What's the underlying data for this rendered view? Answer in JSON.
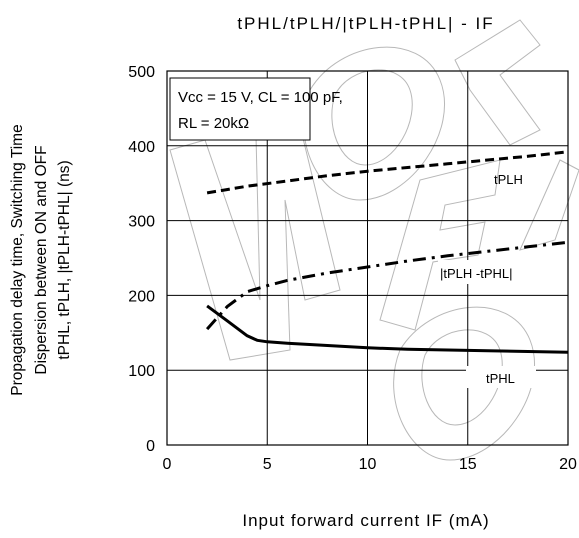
{
  "chart_data": {
    "type": "line",
    "title": "tPHL/tPLH/|tPLH-tPHL| - IF",
    "xlabel": "Input forward current IF (mA)",
    "ylabel": [
      "Propagation delay time, Switching Time",
      "Dispersion between ON and OFF",
      "tPHL, tPLH, |tPLH-tPHL| (ns)"
    ],
    "xlim": [
      0,
      20
    ],
    "ylim": [
      0,
      500
    ],
    "x_ticks": [
      0,
      5,
      10,
      15,
      20
    ],
    "y_ticks": [
      0,
      100,
      200,
      300,
      400,
      500
    ],
    "x_tick_labels": [
      "0",
      "5",
      "10",
      "15",
      "20"
    ],
    "y_tick_labels": [
      "0",
      "100",
      "200",
      "300",
      "400",
      "500"
    ],
    "grid": true,
    "conditions": [
      "Vcc = 15 V, CL = 100 pF,",
      "RL = 20kΩ"
    ],
    "series": [
      {
        "name": "tPLH",
        "style": "dashed",
        "x": [
          2,
          4,
          6,
          8,
          10,
          12,
          14,
          16,
          18,
          20
        ],
        "y": [
          337,
          346,
          353,
          360,
          366,
          371,
          376,
          381,
          386,
          392
        ]
      },
      {
        "name": "|tPLH -tPHL|",
        "style": "dash-dot",
        "x": [
          2,
          3,
          4,
          5,
          6,
          8,
          10,
          12,
          14,
          16,
          18,
          20
        ],
        "y": [
          155,
          185,
          205,
          213,
          220,
          230,
          238,
          246,
          253,
          259,
          265,
          271
        ]
      },
      {
        "name": "tPHL",
        "style": "solid",
        "x": [
          2,
          3,
          4,
          4.5,
          5,
          6,
          8,
          10,
          12,
          14,
          16,
          18,
          20
        ],
        "y": [
          186,
          166,
          146,
          140,
          138,
          136,
          133,
          130,
          128,
          127,
          126,
          125,
          124
        ]
      }
    ],
    "colors": {
      "line": "#000000",
      "grid": "#000000",
      "watermark": "#b8b8b8"
    }
  }
}
